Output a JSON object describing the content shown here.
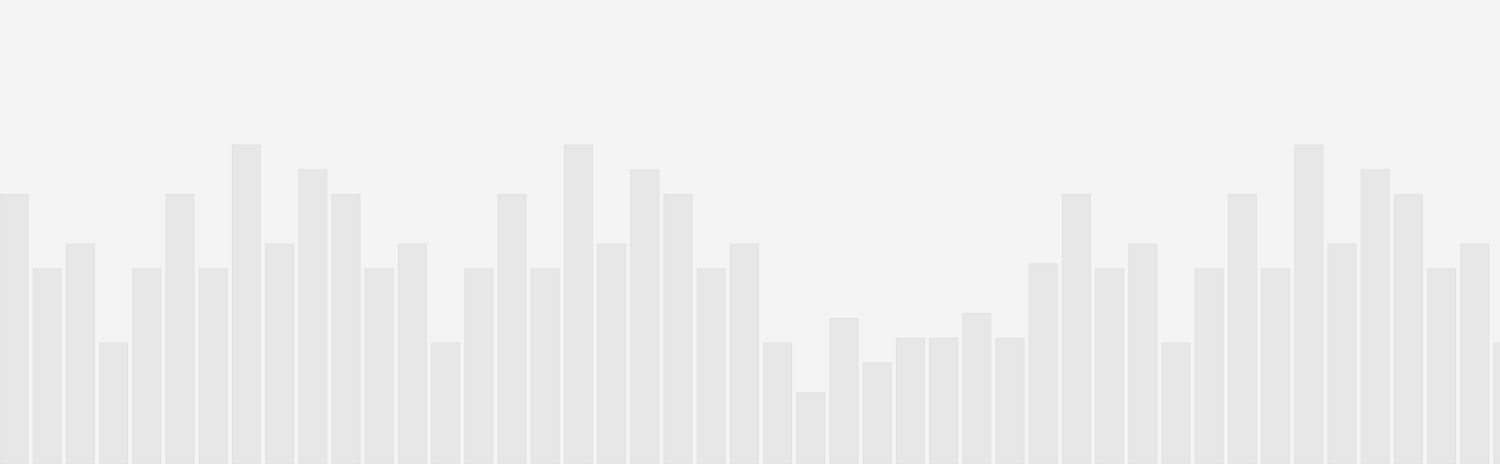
{
  "colors": {
    "background": "#f4f4f4",
    "bar_fill": "#e7e7e7",
    "bar_edge": "#e2e2e2"
  },
  "chart_data": {
    "type": "bar",
    "grid": false,
    "legend": "none",
    "ylim": [
      0,
      325
    ],
    "values": [
      272,
      197,
      222,
      122,
      197,
      272,
      197,
      322,
      222,
      297,
      272,
      197,
      222,
      122,
      197,
      272,
      197,
      322,
      222,
      297,
      272,
      197,
      222,
      122,
      72,
      147,
      102,
      127,
      127,
      152,
      127,
      202,
      272,
      197,
      222,
      122,
      197,
      272,
      197,
      322,
      222,
      297,
      272,
      197,
      222,
      122
    ]
  }
}
